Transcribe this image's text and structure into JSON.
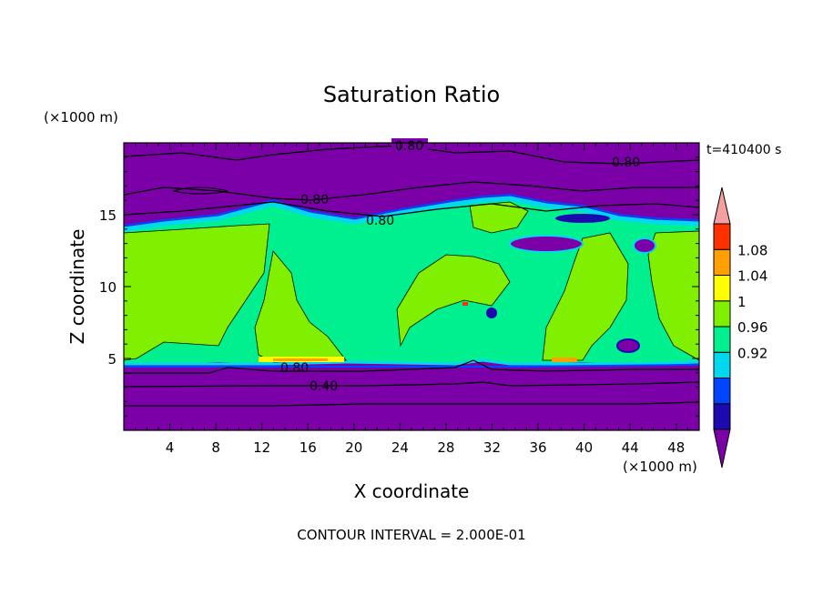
{
  "chart_data": {
    "type": "heatmap",
    "title": "Saturation Ratio",
    "xlabel": "X coordinate",
    "ylabel": "Z coordinate",
    "x_unit": "(×1000 m)",
    "y_unit": "(×1000 m)",
    "time_label": "t=410400 s",
    "footer": "CONTOUR INTERVAL = 2.000E-01",
    "xlim": [
      0,
      50
    ],
    "ylim": [
      0,
      20
    ],
    "x_ticks": [
      "4",
      "8",
      "12",
      "16",
      "20",
      "24",
      "28",
      "32",
      "36",
      "40",
      "44",
      "48"
    ],
    "y_ticks": [
      "5",
      "10",
      "15"
    ],
    "colorbar": {
      "labels": [
        "1.08",
        "1.04",
        "1",
        "0.96",
        "0.92"
      ],
      "colors": [
        "#7b00a8",
        "#1a0ab0",
        "#0044ff",
        "#00d8f0",
        "#00f090",
        "#80f000",
        "#ffff00",
        "#ffa000",
        "#ff3000",
        "#f4a0a0"
      ]
    },
    "contour_labels": [
      "0.80",
      "0.80",
      "0.80",
      "0.80",
      "0.80",
      "0.40"
    ],
    "fields": {
      "upper_dry_layer": {
        "value": "< 0.92",
        "z_range": [
          15.2,
          20
        ]
      },
      "cloud_layer": {
        "value": "≈ 1",
        "z_range": [
          4.7,
          15
        ]
      },
      "lower_dry_layer": {
        "value": "< 0.92",
        "z_range": [
          0,
          4.6
        ]
      }
    }
  }
}
